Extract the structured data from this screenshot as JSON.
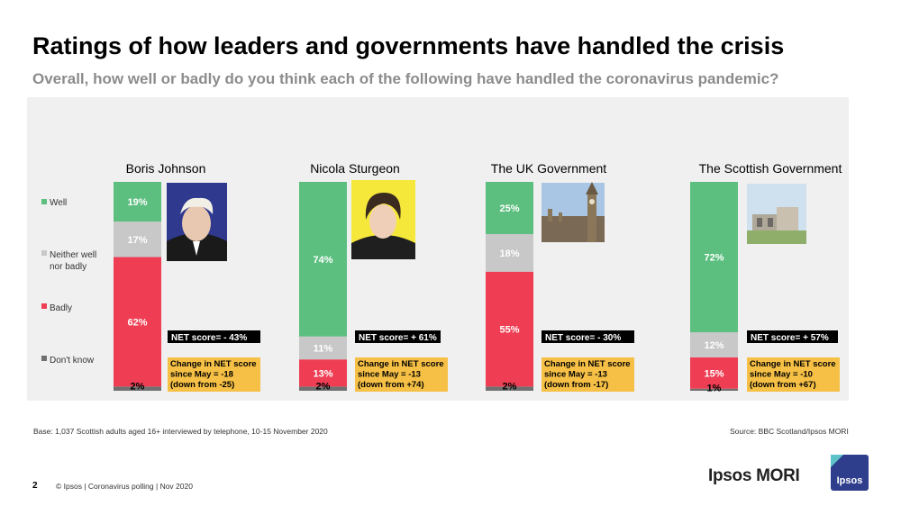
{
  "header": {
    "title": "Ratings of how leaders and governments have handled the crisis",
    "subtitle": "Overall, how well or badly do you think each of the following have handled the coronavirus pandemic?"
  },
  "footer": {
    "base": "Base: 1,037 Scottish adults aged 16+ interviewed by telephone, 10-15 November 2020",
    "source": "Source: BBC Scotland/Ipsos MORI",
    "page_number": "2",
    "copyright": "© Ipsos | Coronavirus polling | Nov 2020",
    "brand": "Ipsos MORI",
    "brand_logo_text": "Ipsos"
  },
  "colors": {
    "well": "#5cbf7f",
    "neither": "#c8c8c8",
    "badly": "#ef3e53",
    "dont_know": "#707070",
    "net_box": "#000000",
    "change_box": "#f6c046",
    "panel": "#f0f0f0"
  },
  "chart_data": {
    "type": "bar",
    "stacked": true,
    "unit": "%",
    "legend": {
      "placement": "left",
      "entries": [
        "Well",
        "Neither well nor badly",
        "Badly",
        "Don't know"
      ]
    },
    "categories": [
      "Boris Johnson",
      "Nicola Sturgeon",
      "The UK Government",
      "The Scottish Government"
    ],
    "series": [
      {
        "name": "Don't know",
        "values": [
          2,
          2,
          2,
          1
        ]
      },
      {
        "name": "Badly",
        "values": [
          62,
          13,
          55,
          15
        ]
      },
      {
        "name": "Neither well nor badly",
        "values": [
          17,
          11,
          18,
          12
        ]
      },
      {
        "name": "Well",
        "values": [
          19,
          74,
          25,
          72
        ]
      }
    ],
    "data_labels": [
      [
        "2%",
        "62%",
        "17%",
        "19%"
      ],
      [
        "2%",
        "13%",
        "11%",
        "74%"
      ],
      [
        "2%",
        "55%",
        "18%",
        "25%"
      ],
      [
        "1%",
        "15%",
        "12%",
        "72%"
      ]
    ],
    "net_scores": [
      "NET score= - 43%",
      "NET score= + 61%",
      "NET score= - 30%",
      "NET score= + 57%"
    ],
    "changes": [
      "Change in NET score since May = -18 (down from -25)",
      "Change in NET score since May = -13 (down from +74)",
      "Change in NET score since May = -13 (down from -17)",
      "Change in NET score since May = -10 (down from +67)"
    ],
    "change_lines": [
      [
        "Change in NET score",
        "since May = -18",
        "(down from -25)"
      ],
      [
        "Change in NET score",
        "since May = -13",
        "(down from +74)"
      ],
      [
        "Change in NET score",
        "since May = -13",
        "(down from -17)"
      ],
      [
        "Change in NET score",
        "since May = -10",
        "(down from +67)"
      ]
    ],
    "ylim": [
      0,
      100
    ]
  }
}
